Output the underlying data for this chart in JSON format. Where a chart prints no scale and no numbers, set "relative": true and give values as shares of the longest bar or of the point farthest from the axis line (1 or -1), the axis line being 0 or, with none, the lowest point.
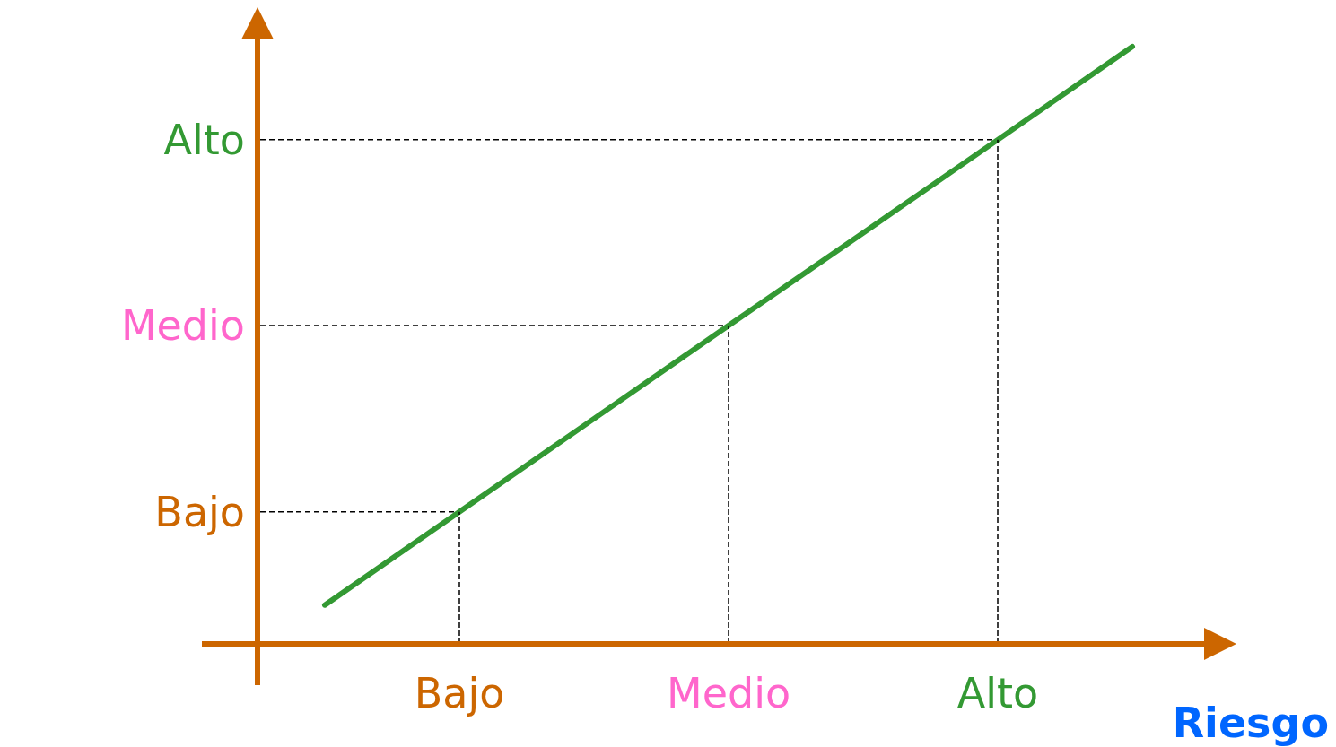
{
  "chart_data": {
    "type": "line",
    "relative": true,
    "xlabel": "Riesgo",
    "categories": [
      null,
      "Bajo",
      null,
      "Medio",
      null,
      "Alto",
      null
    ],
    "series": [
      {
        "color": "#339933",
        "values": [
          0.065,
          0.221,
          0.377,
          0.533,
          0.688,
          0.844,
          1
        ]
      }
    ],
    "ref_lines": [
      {
        "axis": "y",
        "value": 0.221,
        "label": "Bajo",
        "color": "#000000",
        "line_style": "dashed"
      },
      {
        "axis": "y",
        "value": 0.533,
        "label": "Medio",
        "color": "#000000",
        "line_style": "dashed"
      },
      {
        "axis": "y",
        "value": 0.844,
        "label": "Alto",
        "color": "#000000",
        "line_style": "dashed"
      },
      {
        "axis": "x",
        "value": "Bajo",
        "color": "#000000",
        "line_style": "dashed"
      },
      {
        "axis": "x",
        "value": "Medio",
        "color": "#000000",
        "line_style": "dashed"
      },
      {
        "axis": "x",
        "value": "Alto",
        "color": "#000000",
        "line_style": "dashed"
      }
    ],
    "line_style": "solid"
  }
}
